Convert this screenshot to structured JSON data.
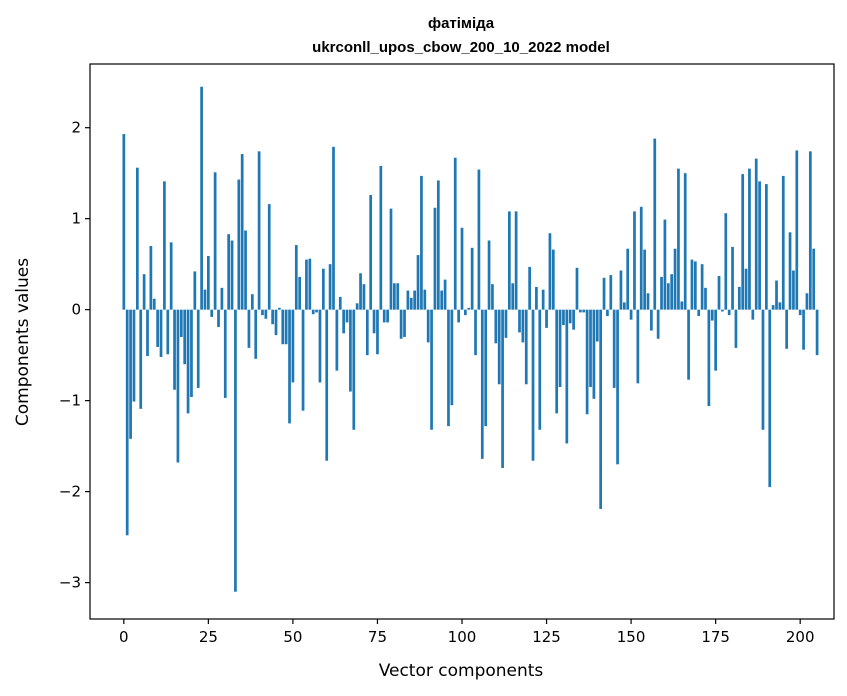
{
  "chart_data": {
    "type": "bar",
    "title": "фатіміда",
    "subtitle": "ukrconll_upos_cbow_200_10_2022 model",
    "xlabel": "Vector components",
    "ylabel": "Components values",
    "xlim": [
      -10,
      210
    ],
    "ylim": [
      -3.4,
      2.7
    ],
    "xticks": [
      0,
      25,
      50,
      75,
      100,
      125,
      150,
      175,
      200
    ],
    "yticks": [
      -3,
      -2,
      -1,
      0,
      1,
      2
    ],
    "ytick_labels": [
      "−3",
      "−2",
      "−1",
      "0",
      "1",
      "2"
    ],
    "bar_color": "#1f77b4",
    "grid": false,
    "values": [
      1.93,
      -2.48,
      -1.42,
      -1.01,
      1.56,
      -1.09,
      0.39,
      -0.51,
      0.7,
      0.12,
      -0.41,
      -0.52,
      1.41,
      -0.49,
      0.74,
      -0.88,
      -1.68,
      -0.3,
      -0.6,
      -1.14,
      -0.96,
      0.42,
      -0.86,
      2.45,
      0.22,
      0.59,
      -0.08,
      1.51,
      -0.19,
      0.24,
      -0.97,
      0.83,
      0.76,
      -3.1,
      1.43,
      1.71,
      0.87,
      -0.42,
      0.17,
      -0.54,
      1.74,
      -0.06,
      -0.1,
      1.16,
      -0.16,
      -0.28,
      0.02,
      -0.38,
      -0.38,
      -1.25,
      -0.8,
      0.71,
      0.36,
      -1.11,
      0.55,
      0.56,
      -0.05,
      -0.03,
      -0.8,
      0.45,
      -1.66,
      0.5,
      1.79,
      -0.67,
      0.14,
      -0.26,
      -0.14,
      -0.9,
      -1.32,
      0.07,
      0.4,
      0.28,
      -0.5,
      1.26,
      -0.26,
      -0.49,
      1.58,
      -0.14,
      -0.14,
      1.11,
      0.29,
      0.29,
      -0.32,
      -0.3,
      0.21,
      0.13,
      0.21,
      0.6,
      1.47,
      0.22,
      -0.36,
      -1.32,
      1.12,
      1.42,
      0.21,
      0.33,
      -1.28,
      -1.05,
      1.67,
      -0.14,
      0.9,
      -0.06,
      0.02,
      0.68,
      -0.5,
      1.54,
      -1.64,
      -1.28,
      0.76,
      0.28,
      -0.37,
      -0.82,
      -1.74,
      -0.31,
      1.08,
      0.29,
      1.08,
      -0.25,
      -0.36,
      -0.82,
      0.47,
      -1.66,
      0.25,
      -1.32,
      0.22,
      -0.2,
      0.84,
      0.66,
      -1.14,
      -0.85,
      -0.17,
      -1.47,
      -0.15,
      -0.22,
      0.46,
      -0.03,
      -0.03,
      -1.15,
      -0.85,
      -0.98,
      -0.35,
      -2.19,
      0.35,
      -0.07,
      0.38,
      -0.86,
      -1.7,
      0.43,
      0.08,
      0.67,
      -0.11,
      1.08,
      -0.81,
      1.13,
      0.66,
      0.18,
      -0.23,
      1.88,
      -0.32,
      0.36,
      0.99,
      0.29,
      0.39,
      0.67,
      1.55,
      0.09,
      1.5,
      -0.77,
      0.55,
      0.53,
      -0.07,
      0.5,
      0.24,
      -1.06,
      -0.12,
      -0.67,
      0.37,
      -0.02,
      1.06,
      -0.06,
      0.69,
      -0.42,
      0.25,
      1.49,
      0.45,
      1.55,
      -0.11,
      1.66,
      1.41,
      -1.32,
      1.38,
      -1.95,
      0.05,
      0.32,
      0.08,
      1.47,
      -0.43,
      0.85,
      0.43,
      1.75,
      -0.06,
      -0.44,
      0.18,
      1.74,
      0.67,
      -0.5
    ]
  }
}
